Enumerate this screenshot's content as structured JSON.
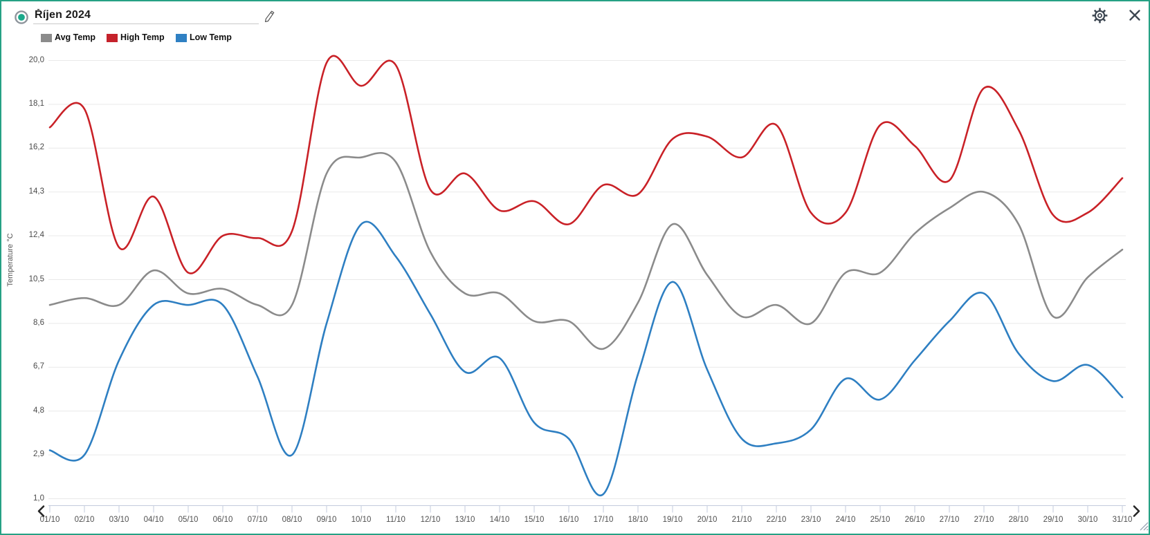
{
  "header": {
    "title": "Říjen 2024",
    "record_icon": "record-dot-icon",
    "edit_icon": "pencil-icon"
  },
  "toolbar": {
    "settings_icon": "gear-icon",
    "close_icon": "close-x-icon"
  },
  "legend": {
    "items": [
      {
        "label": "Avg Temp",
        "color": "#8b8b8b"
      },
      {
        "label": "High Temp",
        "color": "#c5222b"
      },
      {
        "label": "Low Temp",
        "color": "#2f80c3"
      }
    ]
  },
  "scrollbar": {
    "left_arrow_icon": "chevron-left-icon",
    "right_arrow_icon": "chevron-right-icon",
    "resize_icon": "resize-grip-icon"
  },
  "chart_data": {
    "type": "line",
    "title": "Říjen 2024",
    "xlabel": "",
    "ylabel": "Temperature °C",
    "ylim": [
      1.0,
      20.0
    ],
    "grid": "horizontal",
    "legend_position": "top-left",
    "y_ticks": [
      20.0,
      18.1,
      16.2,
      14.3,
      12.4,
      10.5,
      8.6,
      6.7,
      4.8,
      2.9,
      1.0
    ],
    "y_tick_labels": [
      "20,0",
      "18,1",
      "16,2",
      "14,3",
      "12,4",
      "10,5",
      "8,6",
      "6,7",
      "4,8",
      "2,9",
      "1,0"
    ],
    "categories": [
      "01/10",
      "02/10",
      "03/10",
      "04/10",
      "05/10",
      "06/10",
      "07/10",
      "08/10",
      "09/10",
      "10/10",
      "11/10",
      "12/10",
      "13/10",
      "14/10",
      "15/10",
      "16/10",
      "17/10",
      "18/10",
      "19/10",
      "20/10",
      "21/10",
      "22/10",
      "23/10",
      "24/10",
      "25/10",
      "26/10",
      "27/10",
      "27/10",
      "28/10",
      "29/10",
      "30/10",
      "31/10"
    ],
    "series": [
      {
        "name": "Avg Temp",
        "color": "#8b8b8b",
        "values": [
          9.4,
          9.7,
          9.4,
          10.9,
          9.9,
          10.1,
          9.4,
          9.4,
          15.1,
          15.8,
          15.6,
          11.7,
          9.9,
          9.9,
          8.7,
          8.7,
          7.5,
          9.5,
          12.9,
          10.7,
          8.9,
          9.4,
          8.6,
          10.8,
          10.8,
          12.5,
          13.6,
          14.3,
          12.9,
          8.9,
          10.6,
          11.8
        ]
      },
      {
        "name": "High Temp",
        "color": "#c92127",
        "values": [
          17.1,
          17.9,
          11.9,
          14.1,
          10.8,
          12.4,
          12.3,
          12.6,
          19.9,
          18.9,
          19.8,
          14.4,
          15.1,
          13.5,
          13.9,
          12.9,
          14.6,
          14.2,
          16.6,
          16.7,
          15.8,
          17.2,
          13.4,
          13.4,
          17.2,
          16.3,
          14.8,
          18.8,
          17.0,
          13.3,
          13.4,
          14.9
        ]
      },
      {
        "name": "Low Temp",
        "color": "#2e7fc2",
        "values": [
          3.1,
          2.9,
          7.0,
          9.4,
          9.4,
          9.4,
          6.3,
          2.9,
          8.6,
          12.9,
          11.5,
          9.0,
          6.5,
          7.1,
          4.3,
          3.6,
          1.2,
          6.4,
          10.4,
          6.6,
          3.6,
          3.4,
          4.0,
          6.2,
          5.3,
          7.0,
          8.7,
          9.9,
          7.3,
          6.1,
          6.8,
          5.4
        ]
      }
    ]
  }
}
